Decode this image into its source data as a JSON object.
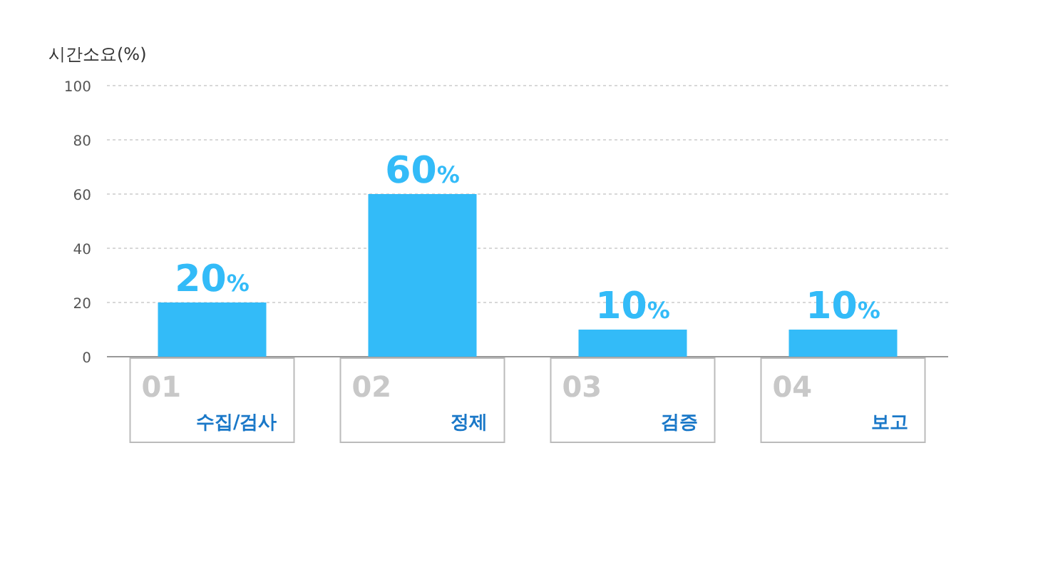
{
  "chart_data": {
    "type": "bar",
    "ylabel": "시간소요(%)",
    "categories": [
      "01 수집/검사",
      "02 정제",
      "03 검증",
      "04 보고"
    ],
    "values": [
      20,
      60,
      10,
      10
    ],
    "color": "#33bbf8",
    "value_labels": [
      "20%",
      "60%",
      "10%",
      "10%"
    ],
    "ylim": [
      0,
      100
    ],
    "yticks": [
      0,
      20,
      40,
      60,
      80,
      100
    ],
    "grid": "y"
  }
}
